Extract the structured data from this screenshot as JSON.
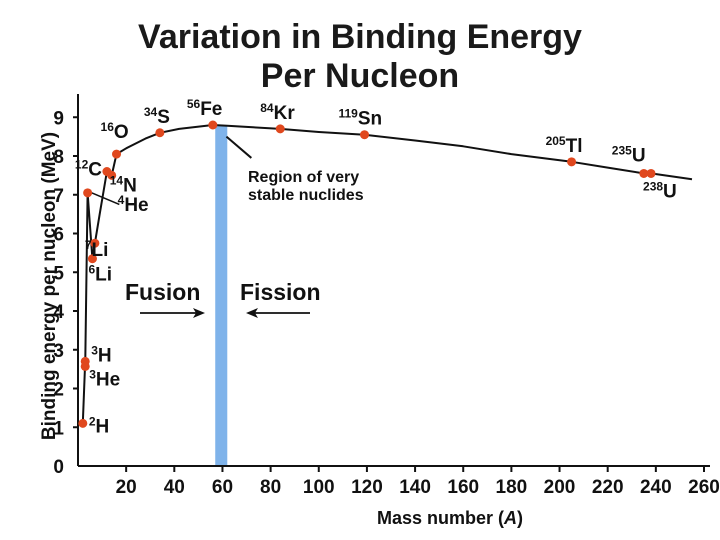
{
  "chart_data": {
    "type": "line",
    "title_line1": "Variation in Binding Energy",
    "title_line2": "Per Nucleon",
    "xlabel_prefix": "Mass number (",
    "xlabel_var": "A",
    "xlabel_suffix": ")",
    "ylabel": "Binding energy per nucleon (MeV)",
    "xlim": [
      0,
      260
    ],
    "ylim": [
      0,
      9.6
    ],
    "xticks": [
      20,
      40,
      60,
      80,
      100,
      120,
      140,
      160,
      180,
      200,
      220,
      240,
      260
    ],
    "yticks": [
      0,
      1,
      2,
      3,
      4,
      5,
      6,
      7,
      8,
      9
    ],
    "series": [
      {
        "name": "binding energy curve",
        "points": [
          [
            2,
            1.1
          ],
          [
            3,
            2.7
          ],
          [
            3,
            2.57
          ],
          [
            4,
            7.05
          ],
          [
            6,
            5.35
          ],
          [
            7,
            5.75
          ],
          [
            9,
            6.5
          ],
          [
            12,
            7.6
          ],
          [
            14,
            7.5
          ],
          [
            16,
            8.05
          ],
          [
            20,
            8.2
          ],
          [
            28,
            8.45
          ],
          [
            34,
            8.6
          ],
          [
            42,
            8.7
          ],
          [
            56,
            8.8
          ],
          [
            62,
            8.78
          ],
          [
            84,
            8.7
          ],
          [
            100,
            8.62
          ],
          [
            119,
            8.55
          ],
          [
            140,
            8.4
          ],
          [
            160,
            8.25
          ],
          [
            180,
            8.05
          ],
          [
            205,
            7.85
          ],
          [
            220,
            7.7
          ],
          [
            235,
            7.55
          ],
          [
            238,
            7.55
          ],
          [
            255,
            7.4
          ]
        ]
      }
    ],
    "nuclides": [
      {
        "sym": "H",
        "mass": "2",
        "x": 2,
        "y": 1.1
      },
      {
        "sym": "H",
        "mass": "3",
        "x": 3,
        "y": 2.7
      },
      {
        "sym": "He",
        "mass": "3",
        "x": 3,
        "y": 2.57
      },
      {
        "sym": "He",
        "mass": "4",
        "x": 4,
        "y": 7.05
      },
      {
        "sym": "Li",
        "mass": "6",
        "x": 6,
        "y": 5.35
      },
      {
        "sym": "Li",
        "mass": "7",
        "x": 7,
        "y": 5.75
      },
      {
        "sym": "C",
        "mass": "12",
        "x": 12,
        "y": 7.6
      },
      {
        "sym": "N",
        "mass": "14",
        "x": 14,
        "y": 7.5
      },
      {
        "sym": "O",
        "mass": "16",
        "x": 16,
        "y": 8.05
      },
      {
        "sym": "S",
        "mass": "34",
        "x": 34,
        "y": 8.6
      },
      {
        "sym": "Fe",
        "mass": "56",
        "x": 56,
        "y": 8.8
      },
      {
        "sym": "Kr",
        "mass": "84",
        "x": 84,
        "y": 8.7
      },
      {
        "sym": "Sn",
        "mass": "119",
        "x": 119,
        "y": 8.55
      },
      {
        "sym": "Tl",
        "mass": "205",
        "x": 205,
        "y": 7.85
      },
      {
        "sym": "U",
        "mass": "235",
        "x": 235,
        "y": 7.55
      },
      {
        "sym": "U",
        "mass": "238",
        "x": 238,
        "y": 7.55
      }
    ],
    "stable_region": {
      "x_from": 57,
      "x_to": 62,
      "label_line1": "Region of very",
      "label_line2": "stable nuclides"
    },
    "fusion_label": "Fusion",
    "fission_label": "Fission"
  },
  "colors": {
    "curve": "#111111",
    "point": "#e0481e",
    "region": "#7fb3ea",
    "text": "#111111"
  }
}
